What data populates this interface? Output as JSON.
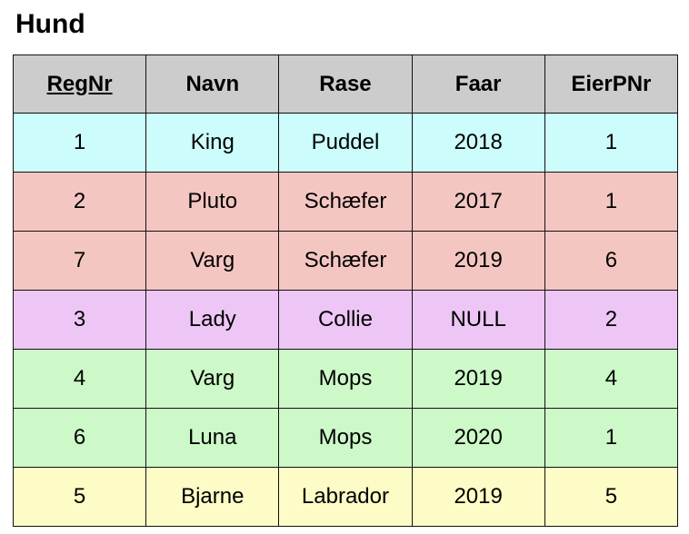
{
  "title": "Hund",
  "table": {
    "columns": [
      "RegNr",
      "Navn",
      "Rase",
      "Faar",
      "EierPNr"
    ],
    "primary_key_column": "RegNr",
    "header_color": "#cccccc",
    "rows": [
      {
        "cells": [
          "1",
          "King",
          "Puddel",
          "2018",
          "1"
        ],
        "color": "#ccfcfc"
      },
      {
        "cells": [
          "2",
          "Pluto",
          "Schæfer",
          "2017",
          "1"
        ],
        "color": "#f4c6c2"
      },
      {
        "cells": [
          "7",
          "Varg",
          "Schæfer",
          "2019",
          "6"
        ],
        "color": "#f4c6c2"
      },
      {
        "cells": [
          "3",
          "Lady",
          "Collie",
          "NULL",
          "2"
        ],
        "color": "#edc6f6"
      },
      {
        "cells": [
          "4",
          "Varg",
          "Mops",
          "2019",
          "4"
        ],
        "color": "#cdf8c8"
      },
      {
        "cells": [
          "6",
          "Luna",
          "Mops",
          "2020",
          "1"
        ],
        "color": "#cdf8c8"
      },
      {
        "cells": [
          "5",
          "Bjarne",
          "Labrador",
          "2019",
          "5"
        ],
        "color": "#fdfcc6"
      }
    ]
  }
}
